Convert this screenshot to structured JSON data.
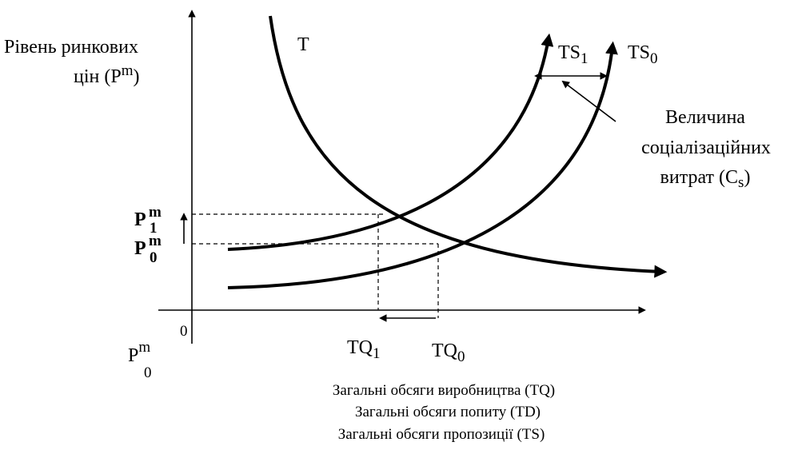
{
  "y_label": {
    "line1": "Рівень ринкових",
    "line2": "цін (P",
    "line2_sup": "m",
    "line2_end": ")"
  },
  "curve_t": "T",
  "ts1": {
    "base": "TS",
    "sub": "1"
  },
  "ts0": {
    "base": "TS",
    "sub": "0"
  },
  "annotation": {
    "line1": "Величина",
    "line2": "соціалізаційних",
    "line3": "витрат (C",
    "line3_sub": "s",
    "line3_end": ")"
  },
  "p1": {
    "base": "P",
    "sup": "m",
    "sub": "1"
  },
  "p0": {
    "base": "P",
    "sup": "m",
    "sub": "0"
  },
  "tq1": {
    "base": "TQ",
    "sub": "1"
  },
  "tq0": {
    "base": "TQ",
    "sub": "0"
  },
  "origin": {
    "zero": "0",
    "base": "P",
    "sup": "m",
    "sub": "0"
  },
  "x_label": {
    "line1": "Загальні обсяги виробництва (TQ)",
    "line2": "Загальні обсяги попиту (TD)",
    "line3": "Загальні обсяги пропозиції (TS)"
  }
}
